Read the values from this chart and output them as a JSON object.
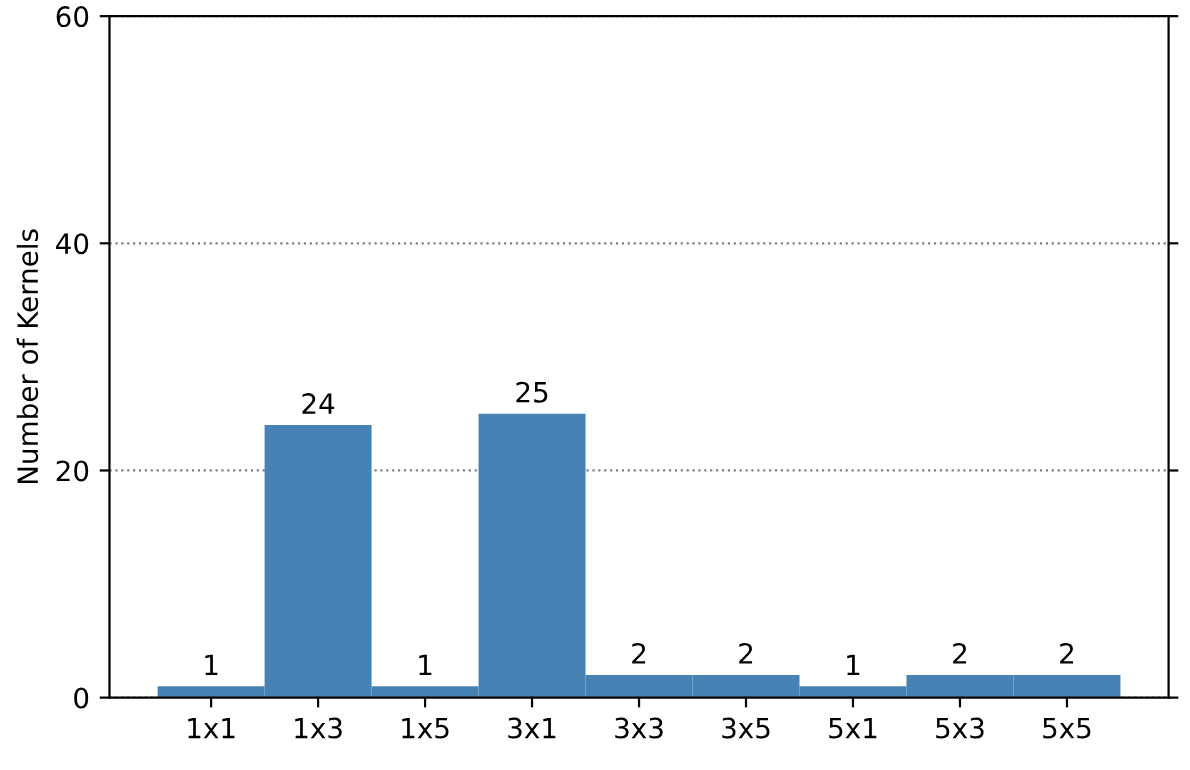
{
  "chart_data": {
    "type": "bar",
    "ylabel": "Number of Kernels",
    "categories": [
      "1x1",
      "1x3",
      "1x5",
      "3x1",
      "3x3",
      "3x5",
      "5x1",
      "5x3",
      "5x5"
    ],
    "values": [
      1,
      24,
      1,
      25,
      2,
      2,
      1,
      2,
      2
    ],
    "color": "#4682b4",
    "ylim": [
      0,
      60
    ],
    "yticks": [
      0,
      20,
      40,
      60
    ],
    "grid": "y",
    "data_labels": true
  }
}
